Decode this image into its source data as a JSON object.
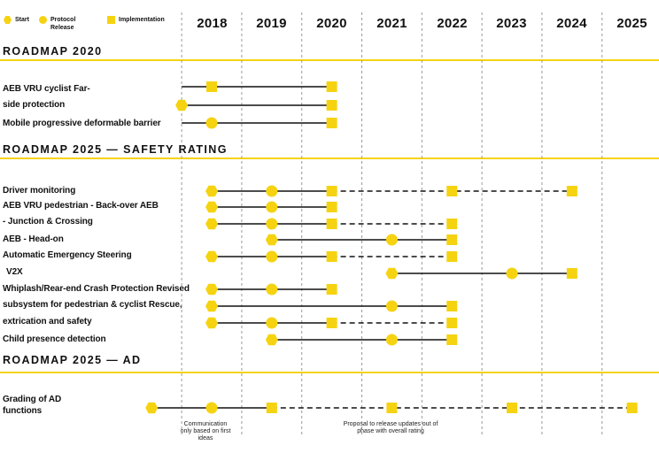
{
  "legend": {
    "start": "Start",
    "protocol": "Protocol Release",
    "implementation": "Implementation"
  },
  "colors": {
    "marker": "#f5d311",
    "line": "#111111",
    "grid": "#9a9a9a"
  },
  "years": [
    "2018",
    "2019",
    "2020",
    "2021",
    "2022",
    "2023",
    "2024",
    "2025"
  ],
  "sections": [
    {
      "title": "ROADMAP 2020"
    },
    {
      "title": "ROADMAP 2025 — SAFETY RATING"
    },
    {
      "title": "ROADMAP 2025 — AD"
    }
  ],
  "labels": [
    "AEB VRU cyclist Far-",
    "side protection",
    "Mobile progressive deformable barrier",
    "Driver monitoring",
    "AEB VRU pedestrian - Back-over AEB",
    "- Junction & Crossing",
    "AEB - Head-on",
    "Automatic Emergency Steering",
    "V2X",
    "Whiplash/Rear-end Crash Protection Revised",
    "subsystem for pedestrian & cyclist Rescue,",
    "extrication and safety",
    "Child presence detection",
    "Grading of AD",
    "functions"
  ],
  "notes": [
    "Communication only based on first ideas",
    "Proposal to release updates out of phase with overall rating"
  ],
  "timeline": [
    {
      "row": 0,
      "segments": [
        {
          "from": 2017.5,
          "to": 2020,
          "style": "solid"
        }
      ],
      "markers": [
        {
          "year": 2018,
          "type": "implementation"
        },
        {
          "year": 2020,
          "type": "implementation"
        }
      ]
    },
    {
      "row": 1,
      "segments": [
        {
          "from": 2017.5,
          "to": 2020,
          "style": "solid"
        }
      ],
      "markers": [
        {
          "year": 2017.5,
          "type": "start"
        },
        {
          "year": 2020,
          "type": "implementation"
        }
      ]
    },
    {
      "row": 2,
      "segments": [
        {
          "from": 2017.5,
          "to": 2020,
          "style": "solid"
        }
      ],
      "markers": [
        {
          "year": 2018,
          "type": "protocol"
        },
        {
          "year": 2020,
          "type": "implementation"
        }
      ]
    },
    {
      "row": 3,
      "segments": [
        {
          "from": 2018,
          "to": 2020,
          "style": "solid"
        },
        {
          "from": 2020,
          "to": 2024,
          "style": "dashed"
        }
      ],
      "markers": [
        {
          "year": 2018,
          "type": "start"
        },
        {
          "year": 2019,
          "type": "protocol"
        },
        {
          "year": 2020,
          "type": "implementation"
        },
        {
          "year": 2022,
          "type": "implementation"
        },
        {
          "year": 2024,
          "type": "implementation"
        }
      ]
    },
    {
      "row": 4,
      "segments": [
        {
          "from": 2018,
          "to": 2020,
          "style": "solid"
        }
      ],
      "markers": [
        {
          "year": 2018,
          "type": "start"
        },
        {
          "year": 2019,
          "type": "protocol"
        },
        {
          "year": 2020,
          "type": "implementation"
        }
      ]
    },
    {
      "row": 5,
      "segments": [
        {
          "from": 2018,
          "to": 2020,
          "style": "solid"
        },
        {
          "from": 2020,
          "to": 2022,
          "style": "dashed"
        }
      ],
      "markers": [
        {
          "year": 2018,
          "type": "start"
        },
        {
          "year": 2019,
          "type": "protocol"
        },
        {
          "year": 2020,
          "type": "implementation"
        },
        {
          "year": 2022,
          "type": "implementation"
        }
      ]
    },
    {
      "row": 6,
      "segments": [
        {
          "from": 2019,
          "to": 2022,
          "style": "solid"
        }
      ],
      "markers": [
        {
          "year": 2019,
          "type": "start"
        },
        {
          "year": 2021,
          "type": "protocol"
        },
        {
          "year": 2022,
          "type": "implementation"
        }
      ]
    },
    {
      "row": 7,
      "segments": [
        {
          "from": 2018,
          "to": 2020,
          "style": "solid"
        },
        {
          "from": 2020,
          "to": 2022,
          "style": "dashed"
        }
      ],
      "markers": [
        {
          "year": 2018,
          "type": "start"
        },
        {
          "year": 2019,
          "type": "protocol"
        },
        {
          "year": 2020,
          "type": "implementation"
        },
        {
          "year": 2022,
          "type": "implementation"
        }
      ]
    },
    {
      "row": 8,
      "segments": [
        {
          "from": 2021,
          "to": 2024,
          "style": "solid"
        }
      ],
      "markers": [
        {
          "year": 2021,
          "type": "start"
        },
        {
          "year": 2023,
          "type": "protocol"
        },
        {
          "year": 2024,
          "type": "implementation"
        }
      ]
    },
    {
      "row": 9,
      "segments": [
        {
          "from": 2018,
          "to": 2020,
          "style": "solid"
        }
      ],
      "markers": [
        {
          "year": 2018,
          "type": "start"
        },
        {
          "year": 2019,
          "type": "protocol"
        },
        {
          "year": 2020,
          "type": "implementation"
        }
      ]
    },
    {
      "row": 10,
      "segments": [
        {
          "from": 2018,
          "to": 2022,
          "style": "solid"
        }
      ],
      "markers": [
        {
          "year": 2018,
          "type": "start"
        },
        {
          "year": 2021,
          "type": "protocol"
        },
        {
          "year": 2022,
          "type": "implementation"
        }
      ]
    },
    {
      "row": 11,
      "segments": [
        {
          "from": 2018,
          "to": 2020,
          "style": "solid"
        },
        {
          "from": 2020,
          "to": 2022,
          "style": "dashed"
        }
      ],
      "markers": [
        {
          "year": 2018,
          "type": "start"
        },
        {
          "year": 2019,
          "type": "protocol"
        },
        {
          "year": 2020,
          "type": "implementation"
        },
        {
          "year": 2022,
          "type": "implementation"
        }
      ]
    },
    {
      "row": 12,
      "segments": [
        {
          "from": 2019,
          "to": 2022,
          "style": "solid"
        }
      ],
      "markers": [
        {
          "year": 2019,
          "type": "start"
        },
        {
          "year": 2021,
          "type": "protocol"
        },
        {
          "year": 2022,
          "type": "implementation"
        }
      ]
    },
    {
      "row": 13,
      "segments": [
        {
          "from": 2017,
          "to": 2019,
          "style": "solid"
        },
        {
          "from": 2019,
          "to": 2025,
          "style": "dashed"
        }
      ],
      "markers": [
        {
          "year": 2017,
          "type": "start"
        },
        {
          "year": 2018,
          "type": "protocol"
        },
        {
          "year": 2019,
          "type": "implementation"
        },
        {
          "year": 2021,
          "type": "implementation"
        },
        {
          "year": 2023,
          "type": "implementation"
        },
        {
          "year": 2025,
          "type": "implementation"
        }
      ]
    }
  ]
}
